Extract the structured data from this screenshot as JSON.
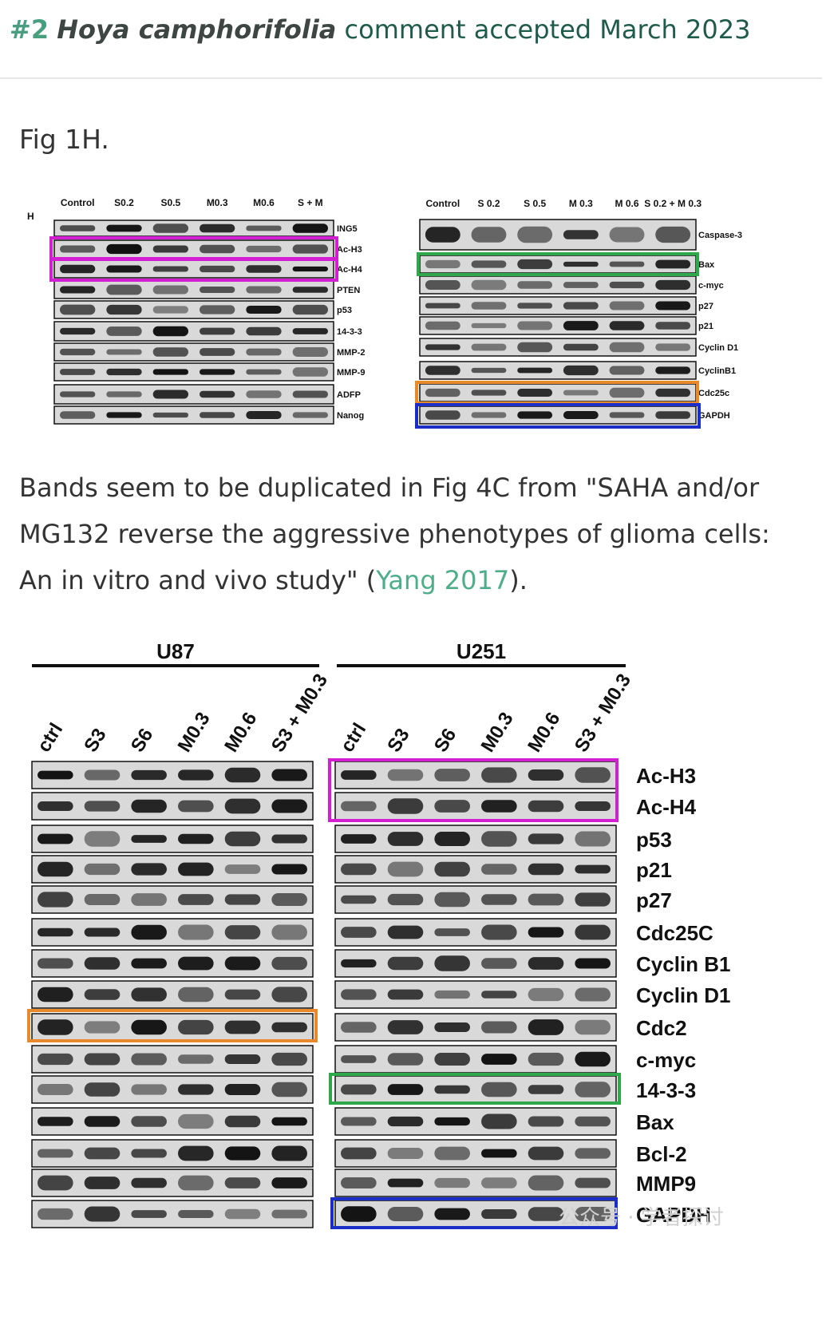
{
  "header": {
    "number": "#2",
    "species": "Hoya camphorifolia",
    "status": "comment accepted March 2023"
  },
  "figure_label": "Fig 1H.",
  "paragraph": {
    "pre": "Bands seem to be duplicated in Fig 4C from \"SAHA and/or MG132 reverse the aggressive phenotypes of glioma cells: An in vitro and vivo study\" (",
    "link": "Yang 2017",
    "post": ")."
  },
  "fig1h": {
    "panel_letter": "H",
    "left_lanes": [
      "Control",
      "S0.2",
      "S0.5",
      "M0.3",
      "M0.6",
      "S + M"
    ],
    "left_rows": [
      "ING5",
      "Ac-H3",
      "Ac-H4",
      "PTEN",
      "p53",
      "14-3-3",
      "MMP-2",
      "MMP-9",
      "ADFP",
      "Nanog"
    ],
    "right_lanes": [
      "Control",
      "S 0.2",
      "S 0.5",
      "M 0.3",
      "M 0.6",
      "S 0.2 + M 0.3"
    ],
    "right_rows": [
      "Caspase-3",
      "Bax",
      "c-myc",
      "p27",
      "p21",
      "Cyclin D1",
      "CyclinB1",
      "Cdc25c",
      "GAPDH"
    ]
  },
  "fig4c": {
    "groups": [
      "U87",
      "U251"
    ],
    "lanes": [
      "ctrl",
      "S3",
      "S6",
      "M0.3",
      "M0.6",
      "S3 + M0.3"
    ],
    "rows": [
      "Ac-H3",
      "Ac-H4",
      "p53",
      "p21",
      "p27",
      "Cdc25C",
      "Cyclin B1",
      "Cyclin D1",
      "Cdc2",
      "c-myc",
      "14-3-3",
      "Bax",
      "Bcl-2",
      "MMP9",
      "GAPDH"
    ]
  },
  "highlight_colors": {
    "magenta": "#d41ed4",
    "green": "#2ea84a",
    "orange": "#e8892c",
    "blue": "#1b2ec8"
  },
  "watermark": "公众号 · 学者探讨"
}
